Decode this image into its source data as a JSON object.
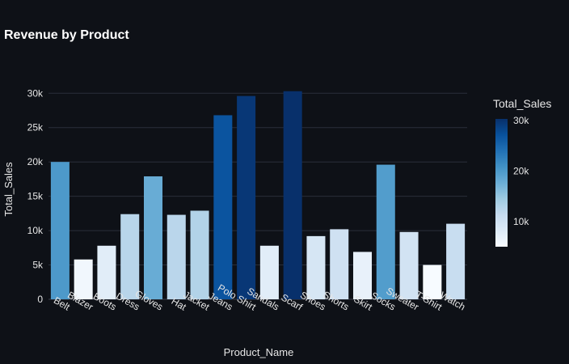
{
  "chart_data": {
    "type": "bar",
    "title": "Revenue by Product",
    "xlabel": "Product_Name",
    "ylabel": "Total_Sales",
    "categories": [
      "Belt",
      "Blazer",
      "Boots",
      "Dress",
      "Gloves",
      "Hat",
      "Jacket",
      "Jeans",
      "Polo Shirt",
      "Sandals",
      "Scarf",
      "Shoes",
      "Shorts",
      "Skirt",
      "Socks",
      "Sweater",
      "T-Shirt",
      "Watch"
    ],
    "values": [
      20000,
      5800,
      7800,
      12400,
      17900,
      12300,
      12900,
      26800,
      29600,
      7800,
      30300,
      9200,
      10200,
      6900,
      19600,
      9800,
      5000,
      11000
    ],
    "ylim": [
      0,
      31800
    ],
    "y_ticks": [
      0,
      5000,
      10000,
      15000,
      20000,
      25000,
      30000
    ],
    "y_tick_labels": [
      "0",
      "5k",
      "10k",
      "15k",
      "20k",
      "25k",
      "30k"
    ],
    "grid": true,
    "colorscale": "Blues",
    "colorbar": {
      "title": "Total_Sales",
      "range": [
        5000,
        30300
      ],
      "ticks": [
        10000,
        20000,
        30000
      ],
      "tick_labels": [
        "10k",
        "20k",
        "30k"
      ]
    },
    "legend": "none"
  }
}
